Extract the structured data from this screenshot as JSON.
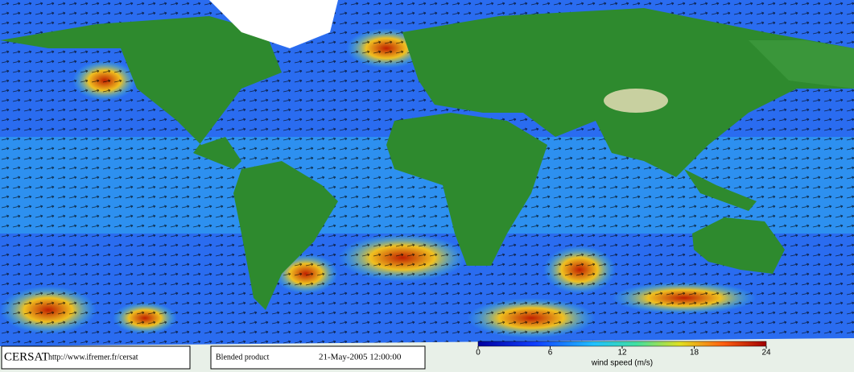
{
  "footer": {
    "logo": "CERSAT",
    "url": "http://www.ifremer.fr/cersat",
    "product": "Blended product",
    "date": "21-May-2005 12:00:00"
  },
  "colorbar": {
    "lim": [
      0,
      24
    ],
    "ticks": [
      0,
      6,
      12,
      18,
      24
    ],
    "label": "wind speed (m/s)"
  }
}
